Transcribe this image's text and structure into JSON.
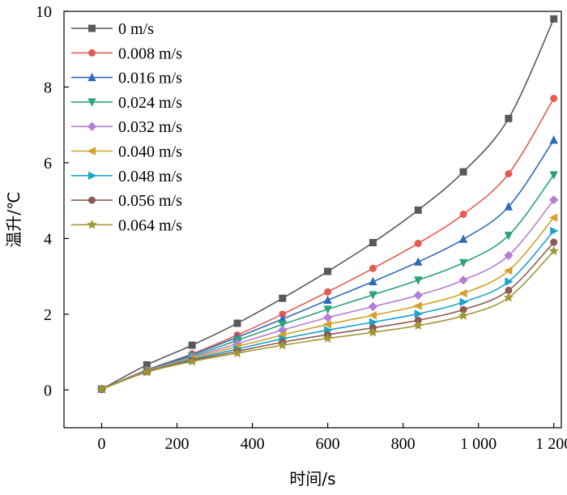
{
  "chart_data": {
    "type": "line",
    "xlabel": "时间/s",
    "ylabel": "温升/℃",
    "xlim": [
      -100,
      1220
    ],
    "ylim": [
      -1,
      10
    ],
    "xticks": [
      0,
      200,
      400,
      600,
      800,
      1000,
      1200
    ],
    "xtick_labels": [
      "0",
      "200",
      "400",
      "600",
      "800",
      "1 000",
      "1 200"
    ],
    "yticks": [
      0,
      2,
      4,
      6,
      8,
      10
    ],
    "ytick_labels": [
      "0",
      "2",
      "4",
      "6",
      "8",
      "10"
    ],
    "grid": false,
    "legend_position": "top-left",
    "x": [
      0,
      120,
      240,
      360,
      480,
      600,
      720,
      840,
      960,
      1080,
      1200
    ],
    "series": [
      {
        "name": "0 m/s",
        "color": "#595959",
        "marker": "square",
        "values": [
          0.02,
          0.66,
          1.18,
          1.76,
          2.42,
          3.13,
          3.89,
          4.75,
          5.76,
          7.17,
          9.8
        ]
      },
      {
        "name": "0.008 m/s",
        "color": "#e45c4f",
        "marker": "circle",
        "values": [
          0.02,
          0.53,
          0.95,
          1.45,
          2.0,
          2.59,
          3.21,
          3.87,
          4.64,
          5.71,
          7.7
        ]
      },
      {
        "name": "0.016 m/s",
        "color": "#2f6bb7",
        "marker": "triangle-up",
        "values": [
          0.02,
          0.52,
          0.93,
          1.39,
          1.87,
          2.37,
          2.86,
          3.38,
          3.98,
          4.84,
          6.6
        ]
      },
      {
        "name": "0.024 m/s",
        "color": "#2ba37c",
        "marker": "triangle-down",
        "values": [
          0.02,
          0.51,
          0.89,
          1.31,
          1.73,
          2.13,
          2.51,
          2.9,
          3.36,
          4.08,
          5.68
        ]
      },
      {
        "name": "0.032 m/s",
        "color": "#b57ed6",
        "marker": "diamond",
        "values": [
          0.02,
          0.5,
          0.86,
          1.22,
          1.58,
          1.91,
          2.2,
          2.5,
          2.9,
          3.55,
          5.02
        ]
      },
      {
        "name": "0.040 m/s",
        "color": "#d5a12a",
        "marker": "triangle-left",
        "values": [
          0.02,
          0.49,
          0.83,
          1.15,
          1.45,
          1.73,
          1.97,
          2.22,
          2.55,
          3.15,
          4.55
        ]
      },
      {
        "name": "0.048 m/s",
        "color": "#1aa3cf",
        "marker": "triangle-right",
        "values": [
          0.02,
          0.48,
          0.8,
          1.08,
          1.35,
          1.58,
          1.79,
          2.01,
          2.32,
          2.86,
          4.2
        ]
      },
      {
        "name": "0.056 m/s",
        "color": "#8b5a52",
        "marker": "circle",
        "values": [
          0.02,
          0.48,
          0.78,
          1.02,
          1.26,
          1.46,
          1.64,
          1.84,
          2.12,
          2.63,
          3.9
        ]
      },
      {
        "name": "0.064 m/s",
        "color": "#a29632",
        "marker": "star",
        "values": [
          0.02,
          0.47,
          0.75,
          0.97,
          1.18,
          1.36,
          1.52,
          1.7,
          1.96,
          2.44,
          3.67
        ]
      }
    ]
  }
}
